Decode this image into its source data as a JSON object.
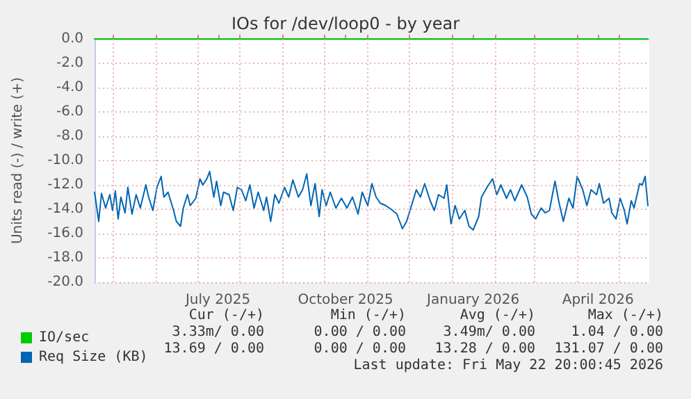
{
  "chart_data": {
    "type": "line",
    "title": "IOs for /dev/loop0 - by year",
    "ylabel": "Units read (-) / write (+)",
    "xlim": [
      "2025-04-18",
      "2026-05-23"
    ],
    "xticks": [
      {
        "value": "2025-05-01",
        "label": null
      },
      {
        "value": "2025-06-01",
        "label": null
      },
      {
        "value": "2025-07-01",
        "label": null
      },
      {
        "value": "2025-07-16",
        "label": "July 2025"
      },
      {
        "value": "2025-08-01",
        "label": null
      },
      {
        "value": "2025-09-01",
        "label": null
      },
      {
        "value": "2025-10-01",
        "label": null
      },
      {
        "value": "2025-10-16",
        "label": "October 2025"
      },
      {
        "value": "2025-11-01",
        "label": null
      },
      {
        "value": "2025-12-01",
        "label": null
      },
      {
        "value": "2026-01-01",
        "label": null
      },
      {
        "value": "2026-01-16",
        "label": "January 2026"
      },
      {
        "value": "2026-02-01",
        "label": null
      },
      {
        "value": "2026-03-01",
        "label": null
      },
      {
        "value": "2026-04-01",
        "label": null
      },
      {
        "value": "2026-04-16",
        "label": "April 2026"
      },
      {
        "value": "2026-05-01",
        "label": null
      }
    ],
    "ylim": [
      -20,
      0
    ],
    "yticks": [
      {
        "value": -20,
        "label": "-20.0"
      },
      {
        "value": -18,
        "label": "-18.0"
      },
      {
        "value": -16,
        "label": "-16.0"
      },
      {
        "value": -14,
        "label": "-14.0"
      },
      {
        "value": -12,
        "label": "-12.0"
      },
      {
        "value": -10,
        "label": "-10.0"
      },
      {
        "value": -8,
        "label": "-8.0"
      },
      {
        "value": -6,
        "label": "-6.0"
      },
      {
        "value": -4,
        "label": "-4.0"
      },
      {
        "value": -2,
        "label": "-2.0"
      },
      {
        "value": 0,
        "label": "0.0"
      }
    ],
    "grid": true,
    "legend": "bottom left",
    "marker": "none",
    "line_style": "solid",
    "series": [
      {
        "name": "IO/sec",
        "color": "#00cc00",
        "x": [
          "2025-04-18",
          "2026-05-22"
        ],
        "values": [
          0,
          0
        ]
      },
      {
        "name": "Req Size (KB)",
        "color": "#0066b3",
        "x": [
          "2025-04-18",
          "2025-04-21",
          "2025-04-23",
          "2025-04-26",
          "2025-04-29",
          "2025-05-01",
          "2025-05-03",
          "2025-05-05",
          "2025-05-07",
          "2025-05-10",
          "2025-05-12",
          "2025-05-15",
          "2025-05-18",
          "2025-05-21",
          "2025-05-25",
          "2025-05-27",
          "2025-05-30",
          "2025-06-02",
          "2025-06-05",
          "2025-06-07",
          "2025-06-10",
          "2025-06-14",
          "2025-06-16",
          "2025-06-19",
          "2025-06-21",
          "2025-06-24",
          "2025-06-26",
          "2025-06-30",
          "2025-07-03",
          "2025-07-05",
          "2025-07-08",
          "2025-07-10",
          "2025-07-13",
          "2025-07-15",
          "2025-07-18",
          "2025-07-20",
          "2025-07-24",
          "2025-07-27",
          "2025-07-30",
          "2025-08-02",
          "2025-08-05",
          "2025-08-08",
          "2025-08-11",
          "2025-08-14",
          "2025-08-18",
          "2025-08-20",
          "2025-08-23",
          "2025-08-26",
          "2025-08-29",
          "2025-09-02",
          "2025-09-05",
          "2025-09-08",
          "2025-09-12",
          "2025-09-15",
          "2025-09-18",
          "2025-09-21",
          "2025-09-24",
          "2025-09-27",
          "2025-09-29",
          "2025-10-02",
          "2025-10-05",
          "2025-10-09",
          "2025-10-13",
          "2025-10-17",
          "2025-10-21",
          "2025-10-25",
          "2025-10-28",
          "2025-11-01",
          "2025-11-04",
          "2025-11-07",
          "2025-11-10",
          "2025-11-14",
          "2025-11-19",
          "2025-11-22",
          "2025-11-26",
          "2025-11-29",
          "2025-12-02",
          "2025-12-06",
          "2025-12-09",
          "2025-12-12",
          "2025-12-16",
          "2025-12-19",
          "2025-12-22",
          "2025-12-26",
          "2025-12-28",
          "2025-12-31",
          "2026-01-03",
          "2026-01-06",
          "2026-01-10",
          "2026-01-13",
          "2026-01-16",
          "2026-01-20",
          "2026-01-22",
          "2026-01-26",
          "2026-01-30",
          "2026-02-02",
          "2026-02-05",
          "2026-02-09",
          "2026-02-12",
          "2026-02-15",
          "2026-02-20",
          "2026-02-24",
          "2026-02-27",
          "2026-03-02",
          "2026-03-06",
          "2026-03-09",
          "2026-03-12",
          "2026-03-16",
          "2026-03-19",
          "2026-03-22",
          "2026-03-26",
          "2026-03-29",
          "2026-04-01",
          "2026-04-05",
          "2026-04-08",
          "2026-04-11",
          "2026-04-15",
          "2026-04-17",
          "2026-04-20",
          "2026-04-24",
          "2026-04-26",
          "2026-04-29",
          "2026-05-02",
          "2026-05-05",
          "2026-05-07",
          "2026-05-10",
          "2026-05-12",
          "2026-05-16",
          "2026-05-18",
          "2026-05-20",
          "2026-05-22"
        ],
        "values": [
          -12.6,
          -15.0,
          -12.7,
          -13.9,
          -12.8,
          -14.1,
          -12.5,
          -14.8,
          -13.0,
          -14.3,
          -12.2,
          -14.4,
          -12.8,
          -13.9,
          -12.0,
          -13.0,
          -14.1,
          -12.2,
          -11.3,
          -13.0,
          -12.6,
          -14.1,
          -15.0,
          -15.4,
          -13.9,
          -12.8,
          -13.7,
          -13.1,
          -11.5,
          -12.0,
          -11.5,
          -10.9,
          -13.0,
          -11.7,
          -13.7,
          -12.6,
          -12.8,
          -14.1,
          -12.2,
          -12.4,
          -13.3,
          -12.0,
          -13.9,
          -12.6,
          -14.1,
          -13.0,
          -15.0,
          -12.8,
          -13.5,
          -12.2,
          -13.0,
          -11.6,
          -13.0,
          -12.4,
          -11.1,
          -13.7,
          -11.9,
          -14.6,
          -12.4,
          -13.7,
          -12.6,
          -13.9,
          -13.1,
          -13.9,
          -13.0,
          -14.4,
          -12.6,
          -13.7,
          -11.9,
          -13.0,
          -13.5,
          -13.7,
          -14.1,
          -14.4,
          -15.6,
          -15.0,
          -13.9,
          -12.4,
          -13.0,
          -11.9,
          -13.3,
          -14.1,
          -12.8,
          -13.1,
          -12.0,
          -15.2,
          -13.7,
          -14.8,
          -14.1,
          -15.4,
          -15.7,
          -14.6,
          -13.0,
          -12.2,
          -11.5,
          -12.8,
          -12.0,
          -13.1,
          -12.4,
          -13.3,
          -12.0,
          -13.0,
          -14.4,
          -14.8,
          -13.9,
          -14.3,
          -14.1,
          -11.7,
          -13.5,
          -15.0,
          -13.1,
          -13.9,
          -11.3,
          -12.4,
          -13.7,
          -12.4,
          -12.8,
          -11.9,
          -13.5,
          -13.1,
          -14.3,
          -14.8,
          -13.1,
          -14.1,
          -15.2,
          -13.3,
          -13.9,
          -11.9,
          -12.0,
          -11.3,
          -13.7
        ]
      }
    ],
    "annotations": [
      "Cur (-/+)",
      "Min (-/+)",
      "Avg (-/+)",
      "Max (-/+)",
      "3.33m/ 0.00",
      "0.00 / 0.00",
      "3.49m/ 0.00",
      "1.04 / 0.00",
      "13.69 / 0.00",
      "0.00 / 0.00",
      "13.28 / 0.00",
      "131.07 / 0.00",
      "Last update: Fri May 22 20:00:45 2026"
    ]
  }
}
